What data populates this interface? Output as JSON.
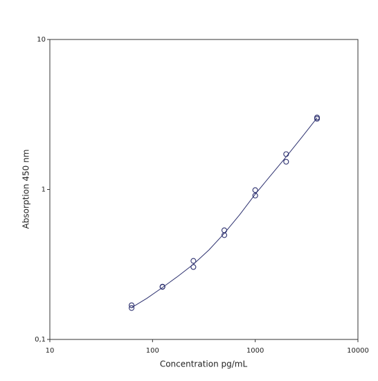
{
  "chart_data": {
    "type": "scatter",
    "xlabel": "Concentration pg/mL",
    "ylabel": "Absorption 450 nm",
    "x": [
      62.5,
      62.5,
      125,
      125,
      250,
      250,
      500,
      500,
      1000,
      1000,
      2000,
      2000,
      4000,
      4000
    ],
    "values": [
      0.169,
      0.162,
      0.225,
      0.224,
      0.334,
      0.304,
      0.534,
      0.496,
      0.99,
      0.91,
      1.72,
      1.53,
      3.02,
      2.96
    ],
    "color": "#2b2f6e",
    "fit": {
      "x": [
        62.5,
        88,
        125,
        177,
        250,
        354,
        500,
        707,
        1000,
        1414,
        2000,
        2828,
        4000
      ],
      "values": [
        0.163,
        0.188,
        0.222,
        0.264,
        0.317,
        0.395,
        0.51,
        0.68,
        0.93,
        1.24,
        1.65,
        2.22,
        3.0
      ],
      "color": "#2b2f6e"
    },
    "xlog": true,
    "ylog": true,
    "xlim": [
      10,
      10000
    ],
    "ylim": [
      0.1,
      10
    ],
    "xticks": [
      10,
      100,
      1000,
      10000
    ],
    "yticks": [
      {
        "value": 0.1,
        "label": "0,1"
      },
      1,
      10
    ]
  }
}
